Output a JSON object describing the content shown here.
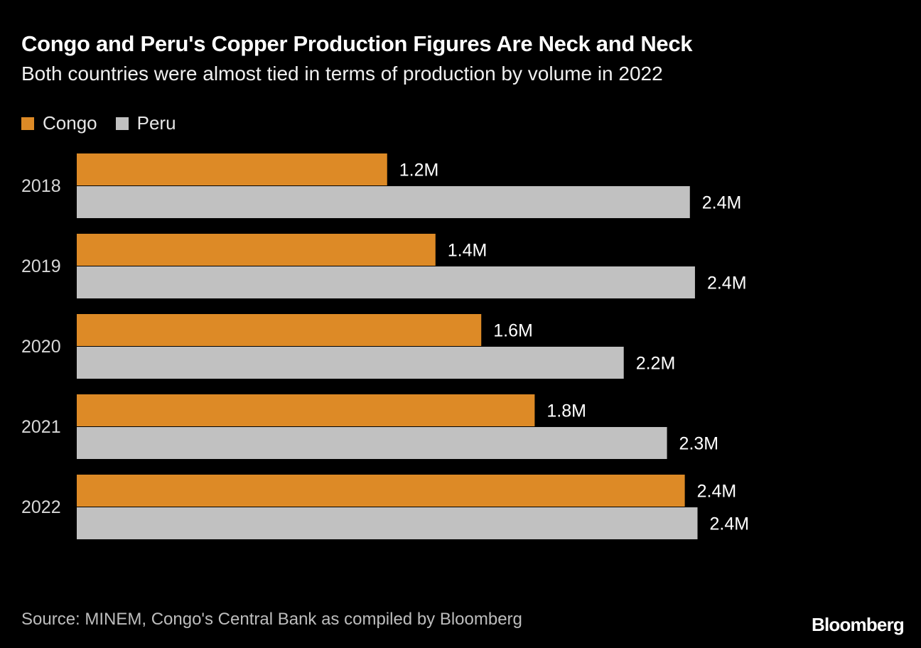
{
  "chart_data": {
    "type": "bar",
    "orientation": "horizontal",
    "title": "Congo and Peru's Copper Production Figures Are Neck and Neck",
    "subtitle": "Both countries were almost tied in terms of production by volume in 2022",
    "categories": [
      "2018",
      "2019",
      "2020",
      "2021",
      "2022"
    ],
    "series": [
      {
        "name": "Congo",
        "color": "#DD8A26",
        "values": [
          1.22,
          1.41,
          1.59,
          1.8,
          2.39
        ],
        "labels": [
          "1.2M",
          "1.4M",
          "1.6M",
          "1.8M",
          "2.4M"
        ]
      },
      {
        "name": "Peru",
        "color": "#C1C1C1",
        "values": [
          2.41,
          2.43,
          2.15,
          2.32,
          2.44
        ],
        "labels": [
          "2.4M",
          "2.4M",
          "2.2M",
          "2.3M",
          "2.4M"
        ]
      }
    ],
    "xlim": [
      0,
      2.5
    ],
    "grid": false,
    "legend_position": "top-left",
    "source": "Source: MINEM, Congo's Central Bank as compiled by Bloomberg"
  },
  "branding": {
    "logo": "Bloomberg"
  }
}
